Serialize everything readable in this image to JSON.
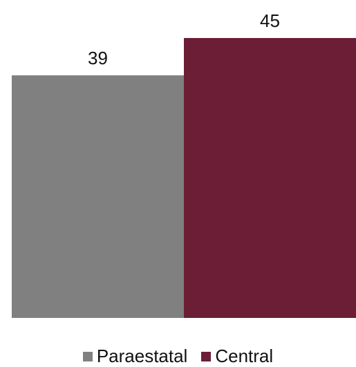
{
  "chart_data": {
    "type": "bar",
    "categories": [
      "Paraestatal",
      "Central"
    ],
    "values": [
      39,
      45
    ],
    "series": [
      {
        "name": "Paraestatal",
        "value": 39,
        "color": "#808080"
      },
      {
        "name": "Central",
        "value": 45,
        "color": "#6b1e35"
      }
    ],
    "data_labels": [
      "39",
      "45"
    ],
    "legend": {
      "position": "bottom",
      "items": [
        "Paraestatal",
        "Central"
      ]
    },
    "ylim": [
      0,
      45
    ],
    "grid": false
  }
}
